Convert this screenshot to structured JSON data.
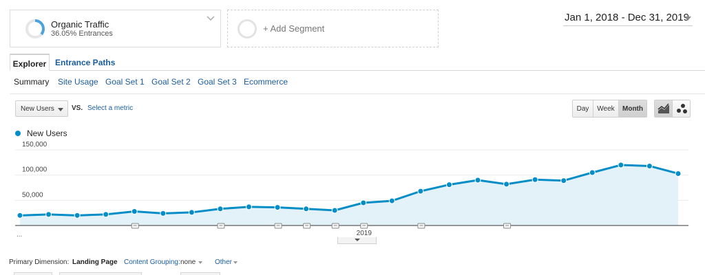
{
  "segment": {
    "name": "Organic Traffic",
    "subtitle": "36.05% Entrances",
    "share": 0.3605,
    "ring_color": "#4aa3df"
  },
  "add_segment": {
    "label": "+ Add Segment"
  },
  "date_range": {
    "label": "Jan 1, 2018 - Dec 31, 2019"
  },
  "tabs": [
    {
      "label": "Explorer",
      "active": true
    },
    {
      "label": "Entrance Paths",
      "active": false
    }
  ],
  "subnav": [
    {
      "label": "Summary",
      "active": true
    },
    {
      "label": "Site Usage",
      "active": false
    },
    {
      "label": "Goal Set 1",
      "active": false
    },
    {
      "label": "Goal Set 2",
      "active": false
    },
    {
      "label": "Goal Set 3",
      "active": false
    },
    {
      "label": "Ecommerce",
      "active": false
    }
  ],
  "metric_selector": {
    "selected": "New Users",
    "vs_label": "VS.",
    "compare_link": "Select a metric"
  },
  "granularity": {
    "options": [
      "Day",
      "Week",
      "Month"
    ],
    "selected": "Month"
  },
  "chart_view": {
    "options": [
      "line-chart-icon",
      "motion-chart-icon"
    ],
    "selected": "line-chart-icon"
  },
  "legend": {
    "series_name": "New Users",
    "color": "#058dc7"
  },
  "chart_data": {
    "type": "area",
    "series": [
      {
        "name": "New Users",
        "values": [
          20000,
          22000,
          20000,
          22000,
          28000,
          24000,
          26000,
          33000,
          37000,
          36000,
          33000,
          30000,
          45000,
          49000,
          68000,
          81000,
          90000,
          82000,
          91000,
          89000,
          105000,
          120000,
          118000,
          103000
        ]
      }
    ],
    "ylim": [
      0,
      170000
    ],
    "yticks": [
      "50,000",
      "100,000",
      "150,000"
    ],
    "ytick_values": [
      50000,
      100000,
      150000
    ],
    "x_axis_label": "2019",
    "x_axis_label_index": 12,
    "annotation_indices": [
      4,
      7,
      9,
      10,
      11,
      12,
      14,
      17
    ],
    "grid": true,
    "line_color": "#058dc7",
    "fill_color": "#e3f1f9"
  },
  "chart_more_label": "...",
  "primary_dimension": {
    "label": "Primary Dimension:",
    "selected": "Landing Page",
    "content_grouping_label": "Content Grouping:",
    "content_grouping_value": "none",
    "other_label": "Other"
  }
}
